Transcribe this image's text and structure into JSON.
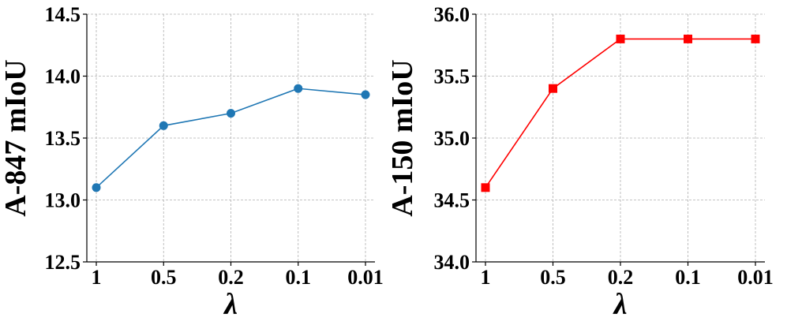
{
  "chart_data": [
    {
      "type": "line",
      "categories": [
        "1",
        "0.5",
        "0.2",
        "0.1",
        "0.01"
      ],
      "series": [
        {
          "values": [
            13.1,
            13.6,
            13.7,
            13.9,
            13.85
          ]
        }
      ],
      "xlabel": "λ",
      "ylabel": "A-847 mIoU",
      "ylim": [
        12.5,
        14.5
      ],
      "yticks": [
        "12.5",
        "13.0",
        "13.5",
        "14.0",
        "14.5"
      ],
      "grid": true,
      "color": "#1f77b4",
      "marker": "circle"
    },
    {
      "type": "line",
      "categories": [
        "1",
        "0.5",
        "0.2",
        "0.1",
        "0.01"
      ],
      "series": [
        {
          "values": [
            34.6,
            35.4,
            35.8,
            35.8,
            35.8
          ]
        }
      ],
      "xlabel": "λ",
      "ylabel": "A-150 mIoU",
      "ylim": [
        34.0,
        36.0
      ],
      "yticks": [
        "34.0",
        "34.5",
        "35.0",
        "35.5",
        "36.0"
      ],
      "grid": true,
      "color": "#ff0000",
      "marker": "square"
    }
  ]
}
